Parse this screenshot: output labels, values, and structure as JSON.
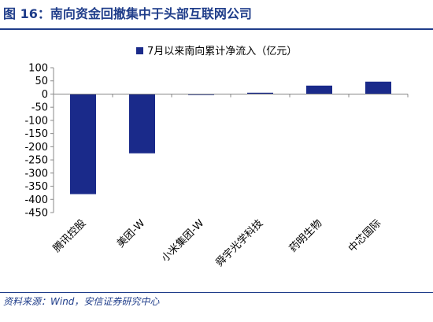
{
  "figure": {
    "title": "图 16：南向资金回撤集中于头部互联网公司",
    "source": "资料来源：Wind，安信证券研究中心"
  },
  "chart_data": {
    "type": "bar",
    "categories": [
      "腾讯控股",
      "美团-W",
      "小米集团-W",
      "舜宇光学科技",
      "药明生物",
      "中芯国际"
    ],
    "series": [
      {
        "name": "7月以来南向累计净流入（亿元）",
        "values": [
          -380,
          -225,
          -2,
          5,
          32,
          47
        ]
      }
    ],
    "ylim": [
      -450,
      100
    ],
    "yticks": [
      100,
      50,
      0,
      -50,
      -100,
      -150,
      -200,
      -250,
      -300,
      -350,
      -400,
      -450
    ],
    "legend": "top-center",
    "grid": false,
    "colors": {
      "bar": "#1a2a8a",
      "axis": "#888888"
    }
  }
}
